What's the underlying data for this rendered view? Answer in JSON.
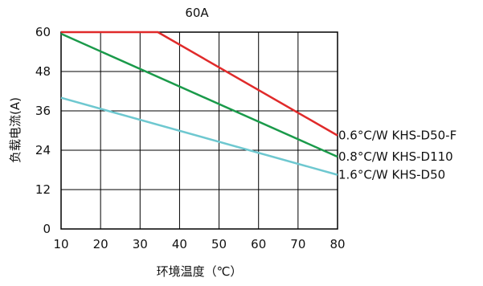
{
  "chart_data": {
    "type": "line",
    "title": "60A",
    "xlabel": "环境温度（℃）",
    "ylabel": "负载电流(A)",
    "xlim": [
      10,
      80
    ],
    "ylim": [
      0,
      60
    ],
    "xticks": [
      10,
      20,
      30,
      40,
      50,
      60,
      70,
      80
    ],
    "yticks": [
      0,
      12,
      24,
      36,
      48,
      60
    ],
    "grid": true,
    "series": [
      {
        "name": "0.6°C/W  KHS-D50-F",
        "color": "#e02a2a",
        "x": [
          10,
          34.5,
          80
        ],
        "y": [
          60,
          60,
          28.5
        ]
      },
      {
        "name": "0.8°C/W  KHS-D110",
        "color": "#1a9a4a",
        "x": [
          10,
          80
        ],
        "y": [
          59.5,
          22
        ]
      },
      {
        "name": "1.6°C/W  KHS-D50",
        "color": "#6ec8d0",
        "x": [
          10,
          80
        ],
        "y": [
          40,
          16.5
        ]
      }
    ]
  }
}
